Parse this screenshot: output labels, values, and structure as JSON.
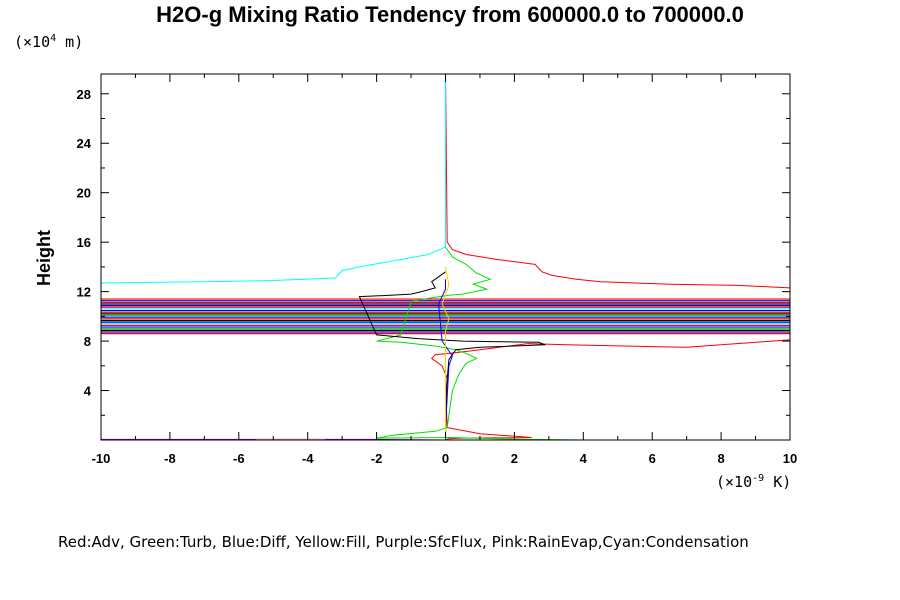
{
  "chart_data": {
    "type": "line",
    "title": "H2O-g Mixing Ratio Tendency from 600000.0 to 700000.0",
    "ylabel": "Height",
    "y_units_prefix": "(×10",
    "y_units_exp": "4",
    "y_units_suffix": " m)",
    "x_units_prefix": "(×10",
    "x_units_exp": "-9",
    "x_units_suffix": " K)",
    "xlim": [
      -10,
      10
    ],
    "ylim": [
      0,
      29.6
    ],
    "x_ticks": [
      "-10",
      "-8",
      "-6",
      "-4",
      "-2",
      "0",
      "2",
      "4",
      "6",
      "8",
      "10"
    ],
    "y_ticks": [
      "4",
      "8",
      "12",
      "16",
      "20",
      "24",
      "28"
    ],
    "legend_text": "Red:Adv, Green:Turb, Blue:Diff, Yellow:Fill, Purple:SfcFlux, Pink:RainEvap,Cyan:Condensation",
    "colors": {
      "Adv": "#ff0000",
      "Turb": "#00e000",
      "Diff": "#0000ff",
      "Fill": "#ffd000",
      "SfcFlux": "#a000c0",
      "RainEvap": "#ff80c0",
      "Condensation": "#00ffff",
      "Black": "#000000"
    },
    "series": [
      {
        "key": "Adv",
        "x": [
          0,
          0.05,
          0.2,
          0.6,
          1.5,
          2.6,
          2.8,
          3.1,
          3.8,
          4.5,
          6.5,
          8.5,
          10,
          10,
          7,
          3.5,
          2.4,
          1.0,
          0.4,
          0.1,
          -0.3,
          -0.4,
          -0.1,
          0.05,
          0.02,
          0.05,
          1.0,
          2.5,
          0.5,
          0.1,
          0
        ],
        "y": [
          29.6,
          16.0,
          15.4,
          15.0,
          14.6,
          14.2,
          13.6,
          13.3,
          13.0,
          12.8,
          12.6,
          12.5,
          12.3,
          8.1,
          7.5,
          7.7,
          7.8,
          7.3,
          7.1,
          7.0,
          6.9,
          6.6,
          6.0,
          5.0,
          3.0,
          1.0,
          0.5,
          0.2,
          0.15,
          0.1,
          0
        ]
      },
      {
        "key": "Condensation",
        "x": [
          0,
          0,
          -0.5,
          -1.5,
          -2.5,
          -3.0,
          -3.2,
          -5,
          -7,
          -10,
          -10,
          -10
        ],
        "y": [
          29.6,
          15.6,
          15.0,
          14.5,
          14.0,
          13.7,
          13.1,
          12.9,
          12.8,
          12.7,
          12.0,
          10.8
        ]
      },
      {
        "key": "Turb",
        "x": [
          0,
          0.2,
          0.6,
          0.9,
          1.3,
          0.8,
          1.2,
          0.5,
          0.1,
          -0.4,
          -1.0,
          -1.3,
          -2.0,
          -1.3,
          -0.3,
          0.3,
          0.6,
          0.9,
          0.6,
          0.4,
          0.2,
          0.1,
          0.05,
          -0.3,
          -1.5,
          -2.0,
          0.1,
          1.5,
          2.5,
          4.0
        ],
        "y": [
          15.6,
          14.8,
          14.2,
          13.5,
          13.0,
          12.6,
          12.2,
          11.8,
          11.7,
          11.5,
          11.2,
          8.5,
          8.0,
          7.9,
          7.6,
          7.3,
          7.0,
          6.6,
          6.2,
          5.4,
          4.0,
          2.0,
          1.0,
          0.7,
          0.4,
          0.15,
          0.2,
          0.1,
          0.05,
          0
        ]
      },
      {
        "key": "Black",
        "x": [
          0,
          -0.2,
          -0.4,
          -0.3,
          -0.7,
          -1.0,
          -1.6,
          -2.5,
          -2.0,
          -0.8,
          0.5,
          2.7,
          2.9,
          1.0,
          0.3,
          0.1,
          0.02,
          0
        ],
        "y": [
          13.6,
          13.2,
          12.8,
          12.3,
          12.0,
          11.8,
          11.7,
          11.6,
          8.5,
          8.2,
          8.0,
          7.9,
          7.7,
          7.5,
          7.3,
          6.5,
          4.0,
          0
        ]
      },
      {
        "key": "Diff",
        "x": [
          0,
          0,
          -0.1,
          -0.2,
          -0.1,
          0,
          0.1,
          0.2,
          0.1,
          0,
          0
        ],
        "y": [
          13.0,
          12.2,
          11.6,
          11.0,
          8.0,
          7.6,
          7.2,
          6.8,
          6.0,
          1.0,
          0
        ]
      },
      {
        "key": "Fill",
        "x": [
          0,
          0.1,
          -0.1,
          0.1,
          0,
          0
        ],
        "y": [
          14.0,
          12.5,
          11.0,
          9.8,
          8.8,
          0
        ]
      },
      {
        "key": "SfcFlux",
        "x": [
          -10,
          -2,
          0
        ],
        "y": [
          0.05,
          0.05,
          0
        ]
      },
      {
        "key": "RainEvap",
        "x": [
          -5.5,
          -4.0,
          -3.5
        ],
        "y": [
          0.04,
          0.04,
          0.04
        ]
      }
    ],
    "bands": {
      "ymin": 8.6,
      "ymax": 11.4,
      "count": 22,
      "palette": [
        "Adv",
        "Diff",
        "Black",
        "Turb",
        "Diff",
        "Adv",
        "Condensation",
        "Diff",
        "Black",
        "Adv",
        "Diff",
        "Turb",
        "Black",
        "Adv",
        "Diff",
        "Condensation",
        "Adv",
        "Diff",
        "Black",
        "Adv",
        "Diff",
        "Adv"
      ]
    }
  }
}
